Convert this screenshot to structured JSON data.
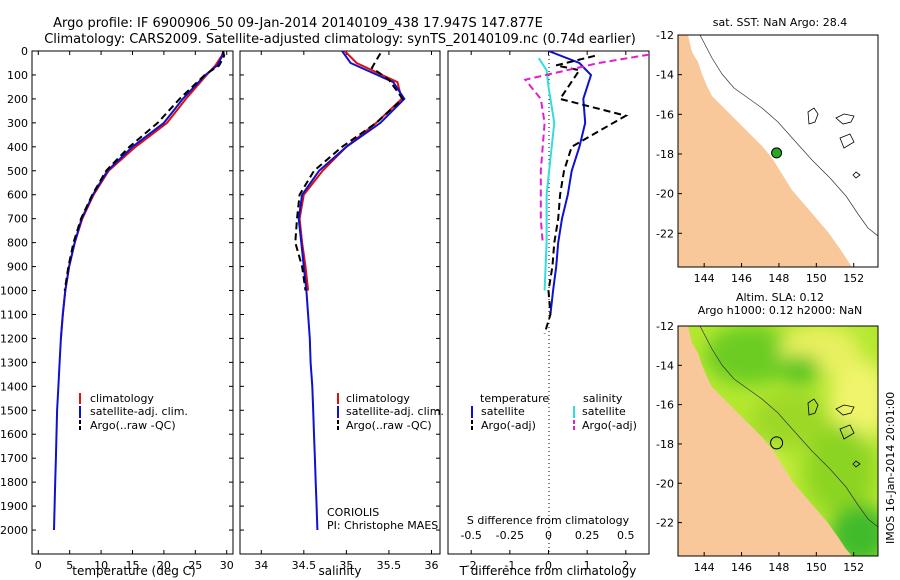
{
  "figure": {
    "title_line1": "Argo profile: IF 6900906_50 09-Jan-2014 20140109_438 17.947S 147.877E",
    "title_line2": "Climatology: CARS2009. Satellite-adjusted climatology: synTS_20140109.nc (0.74d earlier)"
  },
  "colors": {
    "climatology": "#e01010",
    "satellite": "#1010d0",
    "argo": "#000000",
    "salinity_satellite": "#33dddd",
    "salinity_argo": "#e020d0",
    "land": "#f8c89a",
    "sst_marker": "#22aa22"
  },
  "chart_data": [
    {
      "id": "temperature",
      "type": "line",
      "xlabel": "temperature (deg C)",
      "ylabel": "",
      "xlim": [
        -1,
        31
      ],
      "ylim": [
        2100,
        0
      ],
      "xticks": [
        0,
        5,
        10,
        15,
        20,
        25,
        30
      ],
      "yticks": [
        0,
        100,
        200,
        300,
        400,
        500,
        600,
        700,
        800,
        900,
        1000,
        1100,
        1200,
        1300,
        1400,
        1500,
        1600,
        1700,
        1800,
        1900,
        2000
      ],
      "legend": [
        "climatology",
        "satellite-adj. clim.",
        "Argo(..raw -QC)"
      ],
      "legend_placement": "lower-center",
      "series": [
        {
          "name": "climatology",
          "style": "solid",
          "color_key": "climatology",
          "points": [
            [
              29.5,
              0
            ],
            [
              29.2,
              20
            ],
            [
              28.2,
              60
            ],
            [
              26.8,
              100
            ],
            [
              23.5,
              200
            ],
            [
              20.5,
              300
            ],
            [
              15.5,
              400
            ],
            [
              11.2,
              500
            ],
            [
              8.8,
              600
            ],
            [
              7.0,
              700
            ],
            [
              5.8,
              800
            ],
            [
              4.9,
              900
            ],
            [
              4.3,
              1000
            ],
            [
              3.9,
              1100
            ],
            [
              3.6,
              1200
            ]
          ]
        },
        {
          "name": "satellite-adj. clim.",
          "style": "solid",
          "color_key": "satellite",
          "points": [
            [
              29.5,
              0
            ],
            [
              29.3,
              20
            ],
            [
              28.5,
              60
            ],
            [
              26.6,
              100
            ],
            [
              23.0,
              200
            ],
            [
              20.0,
              300
            ],
            [
              15.0,
              400
            ],
            [
              11.0,
              500
            ],
            [
              8.7,
              600
            ],
            [
              6.9,
              700
            ],
            [
              5.8,
              800
            ],
            [
              4.9,
              900
            ],
            [
              4.3,
              1000
            ],
            [
              3.9,
              1100
            ],
            [
              3.6,
              1200
            ],
            [
              3.4,
              1300
            ],
            [
              3.2,
              1400
            ],
            [
              3.0,
              1500
            ],
            [
              2.9,
              1600
            ],
            [
              2.8,
              1700
            ],
            [
              2.7,
              1800
            ],
            [
              2.6,
              1900
            ],
            [
              2.5,
              2000
            ]
          ]
        },
        {
          "name": "Argo(..raw -QC)",
          "style": "dashed",
          "color_key": "argo",
          "points": [
            [
              29.4,
              0
            ],
            [
              29.6,
              20
            ],
            [
              28.8,
              60
            ],
            [
              26.5,
              100
            ],
            [
              22.5,
              200
            ],
            [
              19.0,
              300
            ],
            [
              14.5,
              400
            ],
            [
              10.8,
              500
            ],
            [
              8.6,
              600
            ],
            [
              6.8,
              700
            ],
            [
              5.6,
              800
            ],
            [
              4.8,
              900
            ],
            [
              4.2,
              1000
            ]
          ]
        }
      ]
    },
    {
      "id": "salinity",
      "type": "line",
      "xlabel": "salinity",
      "ylabel": "",
      "xlim": [
        33.75,
        36.1
      ],
      "ylim": [
        2100,
        0
      ],
      "xticks": [
        34,
        34.5,
        35,
        35.5,
        36
      ],
      "xticklabels": [
        "34",
        "34.5",
        "35",
        "35.5",
        "36"
      ],
      "legend": [
        "climatology",
        "satellite-adj. clim.",
        "Argo(..raw -QC)"
      ],
      "legend_placement": "lower-center",
      "annotation": [
        "CORIOLIS",
        "PI: Christophe MAES"
      ],
      "series": [
        {
          "name": "climatology",
          "style": "solid",
          "color_key": "climatology",
          "points": [
            [
              34.98,
              0
            ],
            [
              35.12,
              50
            ],
            [
              35.6,
              130
            ],
            [
              35.65,
              200
            ],
            [
              35.35,
              300
            ],
            [
              35.0,
              400
            ],
            [
              34.72,
              500
            ],
            [
              34.5,
              600
            ],
            [
              34.45,
              700
            ],
            [
              34.48,
              800
            ],
            [
              34.52,
              900
            ],
            [
              34.55,
              1000
            ]
          ]
        },
        {
          "name": "satellite-adj. clim.",
          "style": "solid",
          "color_key": "satellite",
          "points": [
            [
              34.95,
              0
            ],
            [
              35.05,
              50
            ],
            [
              35.55,
              130
            ],
            [
              35.68,
              200
            ],
            [
              35.4,
              300
            ],
            [
              35.0,
              400
            ],
            [
              34.68,
              500
            ],
            [
              34.48,
              600
            ],
            [
              34.44,
              700
            ],
            [
              34.47,
              800
            ],
            [
              34.5,
              900
            ],
            [
              34.53,
              1000
            ],
            [
              34.55,
              1100
            ],
            [
              34.57,
              1200
            ],
            [
              34.58,
              1300
            ],
            [
              34.6,
              1400
            ],
            [
              34.61,
              1500
            ],
            [
              34.62,
              1600
            ],
            [
              34.63,
              1700
            ],
            [
              34.64,
              1800
            ],
            [
              34.65,
              1900
            ],
            [
              34.66,
              2000
            ]
          ]
        },
        {
          "name": "Argo(..raw -QC)",
          "style": "dashed",
          "color_key": "argo",
          "points": [
            [
              35.4,
              10
            ],
            [
              35.3,
              70
            ],
            [
              35.5,
              120
            ],
            [
              35.66,
              200
            ],
            [
              35.35,
              300
            ],
            [
              34.95,
              400
            ],
            [
              34.62,
              500
            ],
            [
              34.45,
              600
            ],
            [
              34.42,
              700
            ],
            [
              34.4,
              800
            ],
            [
              34.48,
              900
            ],
            [
              34.52,
              1000
            ]
          ]
        }
      ]
    },
    {
      "id": "difference",
      "type": "line",
      "xlabel": "T difference from climatology",
      "xlabel_top": "S difference from climatology",
      "ylabel": "",
      "xlim": [
        -2.6,
        2.6
      ],
      "ylim": [
        2100,
        0
      ],
      "xticks": [
        -2,
        -1,
        0,
        1,
        2
      ],
      "s_ticklabels": [
        "-0.5",
        "-0.25",
        "0",
        "0.25",
        "0.5"
      ],
      "legend": [
        "temperature",
        "salinity",
        "satellite",
        "Argo(-adj)",
        "satellite",
        "Argo(-adj)"
      ],
      "legend_placement": "lower-center",
      "series": [
        {
          "name": "temperature satellite",
          "style": "solid",
          "color_key": "satellite",
          "points": [
            [
              0,
              0
            ],
            [
              0.8,
              50
            ],
            [
              1.1,
              100
            ],
            [
              0.9,
              200
            ],
            [
              0.95,
              300
            ],
            [
              0.8,
              400
            ],
            [
              0.6,
              500
            ],
            [
              0.5,
              600
            ],
            [
              0.35,
              700
            ],
            [
              0.25,
              800
            ],
            [
              0.2,
              900
            ],
            [
              0.12,
              1000
            ],
            [
              0.05,
              1100
            ]
          ]
        },
        {
          "name": "temperature Argo(-adj)",
          "style": "dashed",
          "color_key": "argo",
          "points": [
            [
              1.2,
              20
            ],
            [
              0.2,
              60
            ],
            [
              0.8,
              80
            ],
            [
              0.3,
              200
            ],
            [
              2.0,
              270
            ],
            [
              0.6,
              400
            ],
            [
              0.4,
              500
            ],
            [
              0.3,
              600
            ],
            [
              0.25,
              700
            ],
            [
              0.15,
              800
            ],
            [
              0.1,
              900
            ],
            [
              0.0,
              1000
            ],
            [
              0.05,
              1100
            ],
            [
              -0.1,
              1180
            ]
          ]
        },
        {
          "name": "salinity satellite",
          "style": "solid",
          "color_key": "salinity_satellite",
          "points": [
            [
              -0.25,
              30
            ],
            [
              -0.05,
              80
            ],
            [
              0.0,
              150
            ],
            [
              0.15,
              300
            ],
            [
              0.05,
              450
            ],
            [
              -0.05,
              600
            ],
            [
              -0.05,
              800
            ],
            [
              -0.1,
              1000
            ]
          ]
        },
        {
          "name": "salinity Argo(-adj)",
          "style": "dashed",
          "color_key": "salinity_argo",
          "points": [
            [
              2.6,
              15
            ],
            [
              1.3,
              50
            ],
            [
              -0.6,
              120
            ],
            [
              -0.2,
              200
            ],
            [
              -0.1,
              300
            ],
            [
              -0.2,
              500
            ],
            [
              -0.2,
              700
            ],
            [
              -0.15,
              800
            ]
          ]
        }
      ]
    },
    {
      "id": "sst_map",
      "type": "scatter",
      "title": "sat. SST: NaN Argo: 28.4",
      "xlim": [
        142.6,
        153.3
      ],
      "ylim": [
        -23.7,
        -12
      ],
      "xticks": [
        144,
        146,
        148,
        150,
        152
      ],
      "yticks": [
        -12,
        -14,
        -16,
        -18,
        -20,
        -22
      ],
      "marker": {
        "lon": 147.877,
        "lat": -17.947
      }
    },
    {
      "id": "sla_map",
      "type": "heatmap",
      "title_line1": "Altim. SLA: 0.12",
      "title_line2": "Argo h1000: 0.12 h2000: NaN",
      "xlim": [
        142.6,
        153.3
      ],
      "ylim": [
        -23.7,
        -12
      ],
      "xticks": [
        144,
        146,
        148,
        150,
        152
      ],
      "yticks": [
        -12,
        -14,
        -16,
        -18,
        -20,
        -22
      ],
      "marker": {
        "lon": 147.877,
        "lat": -17.947
      },
      "side_label": "IMOS 16-Jan-2014 20:01:00"
    }
  ]
}
